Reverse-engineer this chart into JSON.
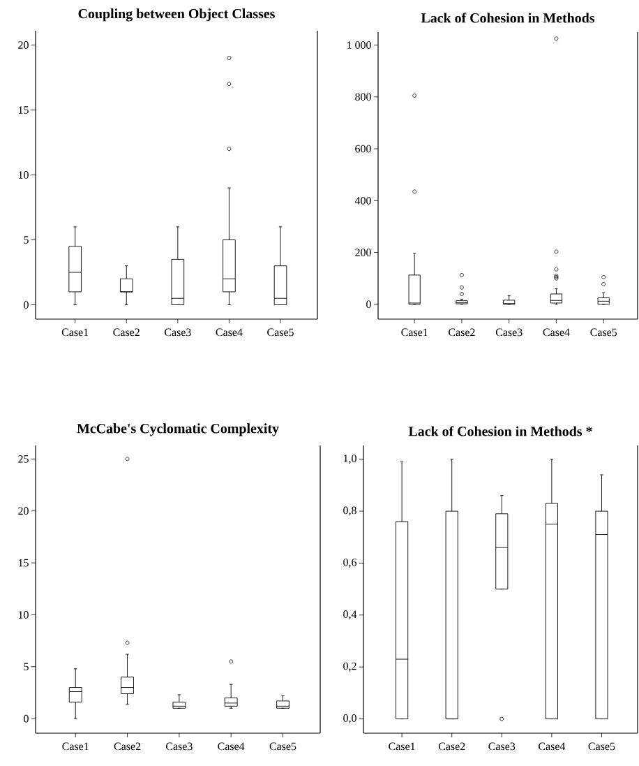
{
  "chart_data": [
    {
      "type": "box",
      "title": "Coupling between Object Classes",
      "categories": [
        "Case1",
        "Case2",
        "Case3",
        "Case4",
        "Case5"
      ],
      "ylim": [
        -1.1,
        21.1
      ],
      "yticks": [
        0,
        5,
        10,
        15,
        20
      ],
      "boxes": [
        {
          "low": 0,
          "q1": 1,
          "median": 2.5,
          "q3": 4.5,
          "high": 6
        },
        {
          "low": 0,
          "q1": 1,
          "median": 1,
          "q3": 2,
          "high": 3
        },
        {
          "low": 0,
          "q1": 0,
          "median": 0.5,
          "q3": 3.5,
          "high": 6
        },
        {
          "low": 0,
          "q1": 1,
          "median": 2,
          "q3": 5,
          "high": 9,
          "outliers": [
            12,
            17,
            19
          ]
        },
        {
          "low": 0,
          "q1": 0,
          "median": 0.5,
          "q3": 3,
          "high": 6
        }
      ]
    },
    {
      "type": "box",
      "title": "Lack of Cohesion in Methods",
      "categories": [
        "Case1",
        "Case2",
        "Case3",
        "Case4",
        "Case5"
      ],
      "ylim": [
        -57,
        1050
      ],
      "yticks": [
        0,
        200,
        400,
        600,
        800,
        {
          "value": 1000,
          "label": "1 000"
        }
      ],
      "boxes": [
        {
          "low": 0,
          "q1": 0,
          "median": 5,
          "q3": 113,
          "high": 196,
          "outliers": [
            435,
            805
          ]
        },
        {
          "low": 0,
          "q1": 2,
          "median": 6,
          "q3": 14,
          "high": 20,
          "outliers": [
            40,
            65,
            113
          ]
        },
        {
          "low": 0,
          "q1": 0,
          "median": 3,
          "q3": 16,
          "high": 33
        },
        {
          "low": 0,
          "q1": 5,
          "median": 15,
          "q3": 40,
          "high": 60,
          "outliers": [
            100,
            105,
            110,
            135,
            203,
            1025
          ]
        },
        {
          "low": 0,
          "q1": 0,
          "median": 12,
          "q3": 25,
          "high": 45,
          "outliers": [
            78,
            105
          ]
        }
      ]
    },
    {
      "type": "box",
      "title": "McCabe's Cyclomatic Complexity",
      "categories": [
        "Case1",
        "Case2",
        "Case3",
        "Case4",
        "Case5"
      ],
      "ylim": [
        -1.4,
        26.3
      ],
      "yticks": [
        0,
        5,
        10,
        15,
        20,
        25
      ],
      "boxes": [
        {
          "low": 0,
          "q1": 1.6,
          "median": 2.6,
          "q3": 3.0,
          "high": 4.8
        },
        {
          "low": 1.4,
          "q1": 2.4,
          "median": 3.0,
          "q3": 4.0,
          "high": 6.2,
          "outliers": [
            7.3,
            25
          ]
        },
        {
          "low": 1.0,
          "q1": 1.0,
          "median": 1.2,
          "q3": 1.6,
          "high": 2.3
        },
        {
          "low": 1.0,
          "q1": 1.2,
          "median": 1.5,
          "q3": 2.0,
          "high": 3.3,
          "outliers": [
            5.5
          ]
        },
        {
          "low": 1.0,
          "q1": 1.0,
          "median": 1.2,
          "q3": 1.7,
          "high": 2.2
        }
      ]
    },
    {
      "type": "box",
      "title": "Lack of Cohesion in Methods *",
      "categories": [
        "Case1",
        "Case2",
        "Case3",
        "Case4",
        "Case5"
      ],
      "ylim": [
        -0.055,
        1.053
      ],
      "yticks": [
        {
          "value": 0,
          "label": "0,0"
        },
        {
          "value": 0.2,
          "label": "0,2"
        },
        {
          "value": 0.4,
          "label": "0,4"
        },
        {
          "value": 0.6,
          "label": "0,6"
        },
        {
          "value": 0.8,
          "label": "0,8"
        },
        {
          "value": 1.0,
          "label": "1,0"
        }
      ],
      "boxes": [
        {
          "low": 0,
          "q1": 0,
          "median": 0.23,
          "q3": 0.76,
          "high": 0.99
        },
        {
          "low": 0,
          "q1": 0,
          "median": 0,
          "q3": 0.8,
          "high": 1.0
        },
        {
          "low": 0.5,
          "q1": 0.5,
          "median": 0.66,
          "q3": 0.79,
          "high": 0.86,
          "outliers": [
            0
          ]
        },
        {
          "low": 0,
          "q1": 0,
          "median": 0.75,
          "q3": 0.83,
          "high": 1.0
        },
        {
          "low": 0,
          "q1": 0,
          "median": 0.71,
          "q3": 0.8,
          "high": 0.94
        }
      ]
    }
  ]
}
